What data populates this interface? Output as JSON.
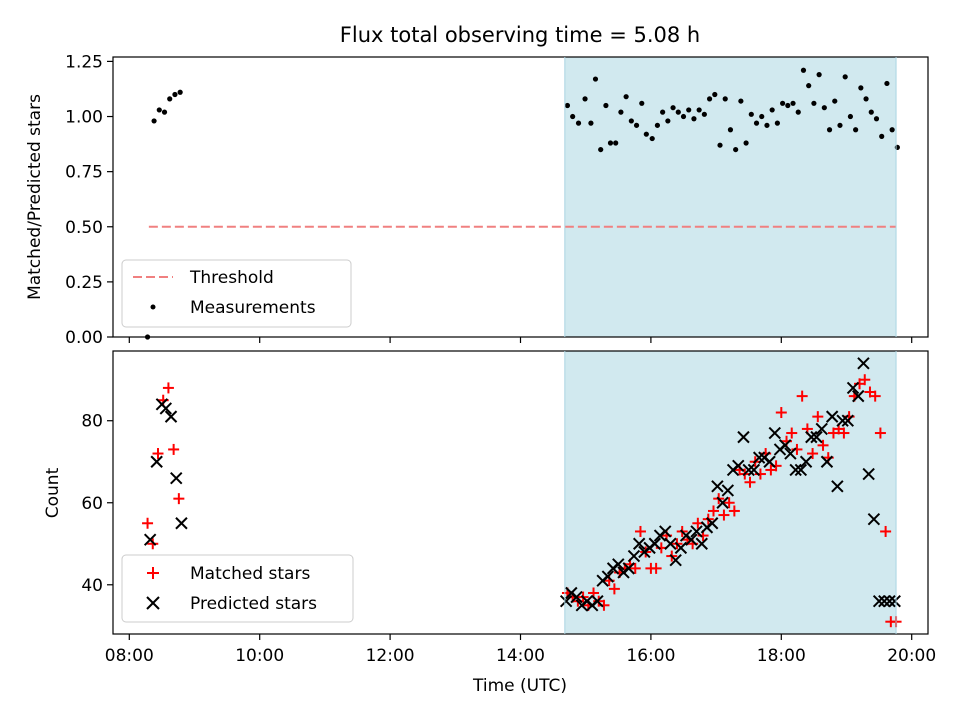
{
  "chart_data": [
    {
      "type": "scatter",
      "title": "Flux total observing time = 5.08 h",
      "xlabel": "",
      "ylabel": "Matched/Predicted stars",
      "xlim": [
        7.75,
        20.25
      ],
      "ylim": [
        0.0,
        1.27
      ],
      "yticks": [
        0.0,
        0.25,
        0.5,
        0.75,
        1.0,
        1.25
      ],
      "ytick_labels": [
        "0.00",
        "0.25",
        "0.50",
        "0.75",
        "1.00",
        "1.25"
      ],
      "xticks": [
        8,
        10,
        12,
        14,
        16,
        18,
        20
      ],
      "shaded_span": [
        14.68,
        19.76
      ],
      "shaded_color": "#d1e9ef",
      "threshold": {
        "name": "Threshold",
        "y": 0.5,
        "x_range": [
          8.3,
          19.76
        ],
        "color": "#f08080"
      },
      "legend": {
        "placement": "lower-left",
        "entries": [
          "Threshold",
          "Measurements"
        ]
      },
      "series": [
        {
          "name": "Measurements",
          "color": "#000000",
          "x": [
            8.28,
            8.38,
            8.46,
            8.54,
            8.62,
            8.7,
            8.78,
            14.72,
            14.8,
            14.89,
            14.99,
            15.08,
            15.15,
            15.23,
            15.31,
            15.38,
            15.46,
            15.54,
            15.62,
            15.7,
            15.78,
            15.86,
            15.93,
            16.02,
            16.1,
            16.18,
            16.26,
            16.34,
            16.42,
            16.5,
            16.58,
            16.66,
            16.74,
            16.82,
            16.9,
            16.98,
            17.06,
            17.14,
            17.22,
            17.3,
            17.38,
            17.46,
            17.54,
            17.62,
            17.7,
            17.78,
            17.86,
            17.94,
            18.02,
            18.1,
            18.18,
            18.26,
            18.34,
            18.42,
            18.5,
            18.58,
            18.66,
            18.74,
            18.82,
            18.9,
            18.98,
            19.06,
            19.14,
            19.22,
            19.3,
            19.38,
            19.46,
            19.54,
            19.62,
            19.7,
            19.78
          ],
          "y": [
            0.0,
            0.98,
            1.03,
            1.02,
            1.08,
            1.1,
            1.11,
            1.05,
            1.0,
            0.97,
            1.08,
            0.97,
            1.17,
            0.85,
            1.05,
            0.88,
            0.88,
            1.02,
            1.09,
            0.98,
            0.96,
            1.06,
            0.92,
            0.9,
            0.96,
            1.02,
            0.98,
            1.04,
            1.02,
            1.0,
            1.03,
            0.99,
            1.03,
            1.01,
            1.08,
            1.1,
            0.87,
            1.08,
            0.94,
            0.85,
            1.07,
            0.88,
            1.01,
            0.97,
            1.0,
            0.96,
            1.03,
            0.97,
            1.06,
            1.05,
            1.06,
            1.02,
            1.21,
            1.14,
            1.06,
            1.19,
            1.04,
            0.94,
            1.07,
            0.96,
            1.18,
            1.0,
            0.94,
            1.13,
            1.08,
            1.02,
            0.99,
            0.91,
            1.15,
            0.94,
            0.86
          ]
        }
      ]
    },
    {
      "type": "scatter",
      "title": "",
      "xlabel": "Time (UTC)",
      "ylabel": "Count",
      "xlim": [
        7.75,
        20.25
      ],
      "ylim": [
        28,
        97
      ],
      "yticks": [
        40,
        60,
        80
      ],
      "ytick_labels": [
        "40",
        "60",
        "80"
      ],
      "xticks": [
        8,
        10,
        12,
        14,
        16,
        18,
        20
      ],
      "xtick_labels": [
        "08:00",
        "10:00",
        "12:00",
        "14:00",
        "16:00",
        "18:00",
        "20:00"
      ],
      "shaded_span": [
        14.68,
        19.76
      ],
      "shaded_color": "#d1e9ef",
      "legend": {
        "placement": "lower-left",
        "entries": [
          "Matched stars",
          "Predicted stars"
        ]
      },
      "series": [
        {
          "name": "Matched stars",
          "marker": "+",
          "color": "#ff0000",
          "x": [
            8.28,
            8.36,
            8.44,
            8.52,
            8.6,
            8.68,
            8.76,
            14.72,
            14.8,
            14.88,
            14.96,
            15.04,
            15.12,
            15.2,
            15.28,
            15.36,
            15.44,
            15.52,
            15.6,
            15.68,
            15.76,
            15.84,
            15.92,
            16.0,
            16.08,
            16.16,
            16.24,
            16.32,
            16.4,
            16.48,
            16.56,
            16.64,
            16.72,
            16.8,
            16.88,
            16.96,
            17.04,
            17.12,
            17.2,
            17.28,
            17.36,
            17.44,
            17.52,
            17.6,
            17.68,
            17.76,
            17.84,
            17.92,
            18.0,
            18.08,
            18.16,
            18.24,
            18.32,
            18.4,
            18.48,
            18.56,
            18.64,
            18.72,
            18.8,
            18.88,
            18.96,
            19.04,
            19.12,
            19.2,
            19.28,
            19.36,
            19.44,
            19.52,
            19.6,
            19.68,
            19.76
          ],
          "y": [
            55,
            50,
            72,
            85,
            88,
            73,
            61,
            38,
            37,
            36,
            37,
            35,
            38,
            36,
            35,
            41,
            39,
            43,
            44,
            45,
            44,
            53,
            48,
            44,
            44,
            49,
            52,
            47,
            50,
            53,
            51,
            50,
            55,
            52,
            56,
            58,
            61,
            57,
            60,
            58,
            68,
            67,
            65,
            70,
            67,
            72,
            68,
            69,
            82,
            75,
            77,
            73,
            86,
            78,
            72,
            81,
            74,
            71,
            77,
            78,
            77,
            81,
            86,
            89,
            90,
            87,
            86,
            77,
            53,
            31,
            31
          ]
        },
        {
          "name": "Predicted stars",
          "marker": "x",
          "color": "#000000",
          "x": [
            8.32,
            8.42,
            8.5,
            8.56,
            8.64,
            8.72,
            8.8,
            14.7,
            14.78,
            14.86,
            14.94,
            15.02,
            15.1,
            15.18,
            15.26,
            15.34,
            15.42,
            15.5,
            15.58,
            15.66,
            15.74,
            15.82,
            15.9,
            15.98,
            16.06,
            16.14,
            16.22,
            16.3,
            16.38,
            16.46,
            16.54,
            16.62,
            16.7,
            16.78,
            16.86,
            16.94,
            17.02,
            17.1,
            17.18,
            17.26,
            17.34,
            17.42,
            17.5,
            17.58,
            17.66,
            17.74,
            17.82,
            17.9,
            17.98,
            18.06,
            18.14,
            18.22,
            18.3,
            18.38,
            18.46,
            18.54,
            18.62,
            18.7,
            18.78,
            18.86,
            18.94,
            19.02,
            19.1,
            19.18,
            19.26,
            19.34,
            19.42,
            19.5,
            19.58,
            19.66,
            19.74
          ],
          "y": [
            51,
            70,
            84,
            83,
            81,
            66,
            55,
            36,
            38,
            37,
            35,
            36,
            35,
            36,
            41,
            42,
            44,
            45,
            43,
            44,
            47,
            50,
            48,
            49,
            50,
            52,
            53,
            50,
            46,
            49,
            52,
            51,
            53,
            50,
            54,
            55,
            64,
            60,
            63,
            68,
            69,
            76,
            68,
            68,
            71,
            71,
            70,
            77,
            73,
            74,
            72,
            68,
            68,
            70,
            76,
            76,
            78,
            70,
            81,
            64,
            80,
            80,
            88,
            86,
            94,
            67,
            56,
            36,
            36,
            36,
            36
          ]
        }
      ]
    }
  ]
}
